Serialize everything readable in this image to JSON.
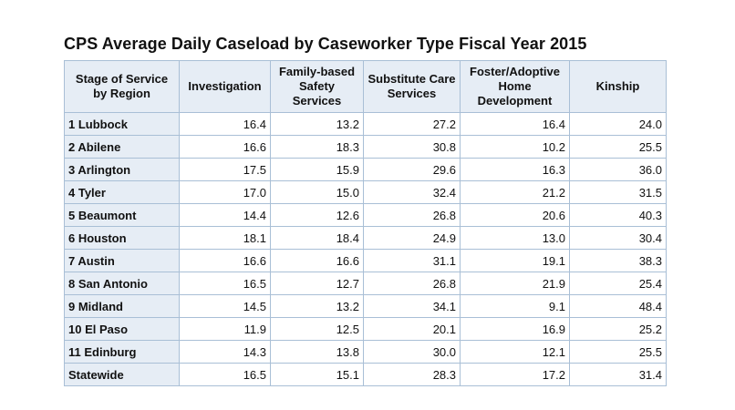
{
  "title": "CPS Average Daily Caseload by Caseworker Type Fiscal Year 2015",
  "columns": [
    "Stage of Service by Region",
    "Investigation",
    "Family-based Safety Services",
    "Substitute Care Services",
    "Foster/Adoptive Home Development",
    "Kinship"
  ],
  "rows": [
    {
      "region": "1 Lubbock",
      "values": [
        "16.4",
        "13.2",
        "27.2",
        "16.4",
        "24.0"
      ]
    },
    {
      "region": "2 Abilene",
      "values": [
        "16.6",
        "18.3",
        "30.8",
        "10.2",
        "25.5"
      ]
    },
    {
      "region": "3 Arlington",
      "values": [
        "17.5",
        "15.9",
        "29.6",
        "16.3",
        "36.0"
      ]
    },
    {
      "region": "4 Tyler",
      "values": [
        "17.0",
        "15.0",
        "32.4",
        "21.2",
        "31.5"
      ]
    },
    {
      "region": "5 Beaumont",
      "values": [
        "14.4",
        "12.6",
        "26.8",
        "20.6",
        "40.3"
      ]
    },
    {
      "region": "6 Houston",
      "values": [
        "18.1",
        "18.4",
        "24.9",
        "13.0",
        "30.4"
      ]
    },
    {
      "region": "7 Austin",
      "values": [
        "16.6",
        "16.6",
        "31.1",
        "19.1",
        "38.3"
      ]
    },
    {
      "region": "8 San Antonio",
      "values": [
        "16.5",
        "12.7",
        "26.8",
        "21.9",
        "25.4"
      ]
    },
    {
      "region": "9 Midland",
      "values": [
        "14.5",
        "13.2",
        "34.1",
        "9.1",
        "48.4"
      ]
    },
    {
      "region": "10 El Paso",
      "values": [
        "11.9",
        "12.5",
        "20.1",
        "16.9",
        "25.2"
      ]
    },
    {
      "region": "11 Edinburg",
      "values": [
        "14.3",
        "13.8",
        "30.0",
        "12.1",
        "25.5"
      ]
    },
    {
      "region": "Statewide",
      "values": [
        "16.5",
        "15.1",
        "28.3",
        "17.2",
        "31.4"
      ]
    }
  ]
}
